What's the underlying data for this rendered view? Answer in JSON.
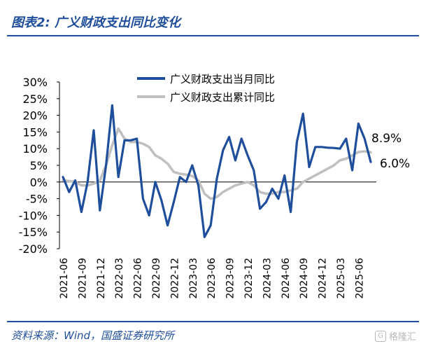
{
  "header": {
    "title": "图表2:  广义财政支出同比变化"
  },
  "footer": {
    "source": "资料来源：Wind，国盛证券研究所",
    "watermark": "格隆汇"
  },
  "colors": {
    "monthly": "#1f4e9c",
    "cumulative": "#c0c0c0",
    "axis": "#000000",
    "title": "#1f4e9c"
  },
  "chart_data": {
    "type": "line",
    "ylim": [
      -20,
      30
    ],
    "yticks": [
      "30%",
      "25%",
      "20%",
      "15%",
      "10%",
      "5%",
      "0%",
      "-5%",
      "-10%",
      "-15%",
      "-20%"
    ],
    "x": [
      "2021-06",
      "2021-07",
      "2021-08",
      "2021-09",
      "2021-10",
      "2021-11",
      "2021-12",
      "2022-01",
      "2022-02",
      "2022-03",
      "2022-04",
      "2022-05",
      "2022-06",
      "2022-07",
      "2022-08",
      "2022-09",
      "2022-10",
      "2022-11",
      "2022-12",
      "2023-01",
      "2023-02",
      "2023-03",
      "2023-04",
      "2023-05",
      "2023-06",
      "2023-07",
      "2023-08",
      "2023-09",
      "2023-10",
      "2023-11",
      "2023-12",
      "2024-01",
      "2024-02",
      "2024-03",
      "2024-04",
      "2024-05",
      "2024-06",
      "2024-07",
      "2024-08",
      "2024-09",
      "2024-10",
      "2024-11",
      "2024-12",
      "2025-01",
      "2025-02",
      "2025-03",
      "2025-04",
      "2025-05",
      "2025-06",
      "2025-07",
      "2025-08"
    ],
    "xticks": [
      "2021-06",
      "2021-09",
      "2021-12",
      "2022-03",
      "2022-06",
      "2022-09",
      "2022-12",
      "2023-03",
      "2023-06",
      "2023-09",
      "2023-12",
      "2024-03",
      "2024-06",
      "2024-09",
      "2024-12",
      "2025-03",
      "2025-06"
    ],
    "series": [
      {
        "name": "广义财政支出当月同比",
        "values": [
          1.5,
          -3.0,
          0.5,
          -9.0,
          0.0,
          15.5,
          -8.5,
          5.0,
          23.0,
          1.5,
          12.5,
          12.5,
          13.0,
          -5.0,
          -10.0,
          0.0,
          -5.5,
          -13.0,
          -6.0,
          1.5,
          0.0,
          5.0,
          -1.0,
          -16.5,
          -13.0,
          1.0,
          9.5,
          13.5,
          6.5,
          13.0,
          8.0,
          3.5,
          -8.0,
          -6.0,
          -2.0,
          -5.0,
          2.0,
          -9.0,
          12.0,
          20.5,
          4.5,
          10.5,
          10.5,
          10.3,
          10.2,
          10.0,
          13.0,
          3.5,
          17.5,
          13.0,
          6.0
        ]
      },
      {
        "name": "广义财政支出累计同比",
        "values": [
          0.5,
          0.3,
          0.0,
          -1.0,
          -1.0,
          -0.5,
          0.5,
          5.0,
          11.0,
          16.0,
          13.0,
          12.0,
          12.0,
          11.5,
          10.5,
          8.0,
          7.0,
          5.5,
          3.0,
          2.5,
          2.2,
          1.8,
          0.5,
          -3.5,
          -5.0,
          -4.5,
          -3.0,
          -2.0,
          -1.0,
          -0.5,
          0.0,
          -1.0,
          -3.0,
          -3.5,
          -3.5,
          -3.0,
          -3.0,
          -2.5,
          -2.0,
          0.0,
          1.0,
          2.0,
          3.0,
          4.0,
          5.0,
          6.5,
          7.0,
          8.0,
          9.0,
          9.2,
          8.9
        ]
      }
    ],
    "end_labels": [
      "8.9%",
      "6.0%"
    ]
  }
}
